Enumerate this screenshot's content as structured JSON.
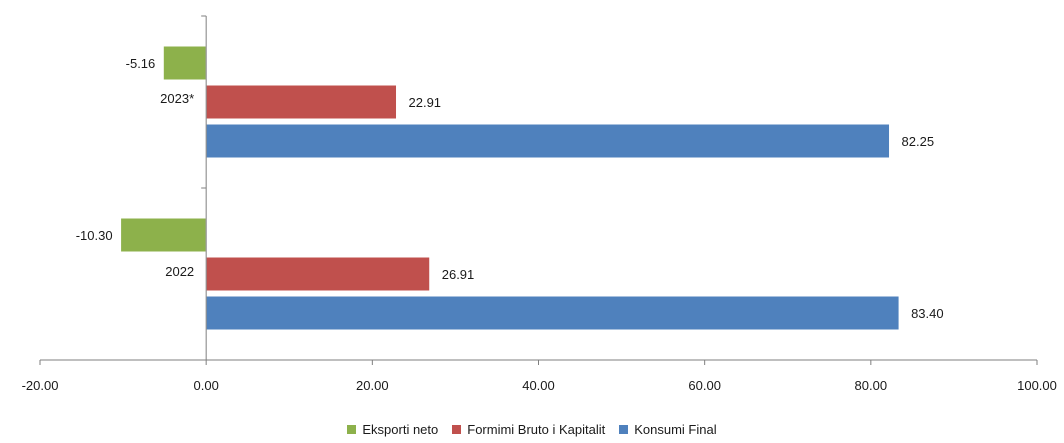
{
  "chart_data": {
    "type": "bar",
    "orientation": "horizontal",
    "categories": [
      "2023*",
      "2022"
    ],
    "series": [
      {
        "name": "Eksporti neto",
        "color": "#8db14b",
        "values": [
          -5.16,
          -10.3
        ],
        "labels": [
          "-5.16",
          "-10.30"
        ]
      },
      {
        "name": "Formimi Bruto i Kapitalit",
        "color": "#c0504d",
        "values": [
          22.91,
          26.91
        ],
        "labels": [
          "22.91",
          "26.91"
        ]
      },
      {
        "name": "Konsumi Final",
        "color": "#4f81bd",
        "values": [
          82.25,
          83.4
        ],
        "labels": [
          "82.25",
          "83.40"
        ]
      }
    ],
    "xlim": [
      -20,
      100
    ],
    "x_ticks": [
      {
        "value": -20,
        "label": "-20.00"
      },
      {
        "value": 0,
        "label": "0.00"
      },
      {
        "value": 20,
        "label": "20.00"
      },
      {
        "value": 40,
        "label": "40.00"
      },
      {
        "value": 60,
        "label": "60.00"
      },
      {
        "value": 80,
        "label": "80.00"
      },
      {
        "value": 100,
        "label": "100.00"
      }
    ],
    "grid": false,
    "legend_position": "bottom"
  }
}
